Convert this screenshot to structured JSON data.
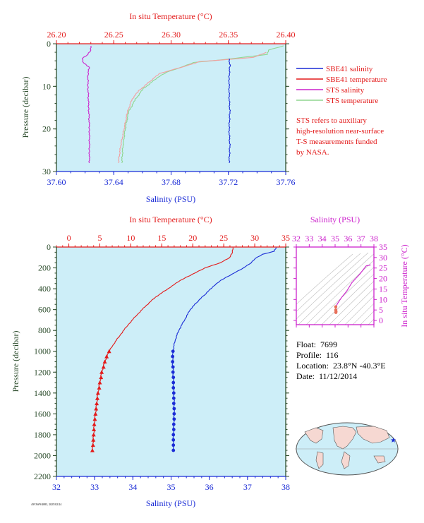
{
  "colors": {
    "salinity": "#1a2bd6",
    "temperature": "#e31a1a",
    "sts_salinity": "#cc22cc",
    "sts_temperature": "#8fd68f",
    "sts_temperature_light": "#f2a0a0",
    "plot_bg": "#cdeef8",
    "pressure_axis": "#2e4e2e",
    "ts_axis": "#cc22cc"
  },
  "chart_data": [
    {
      "id": "near_surface",
      "type": "line",
      "top_axis": {
        "label": "In situ Temperature (°C)",
        "range": [
          26.2,
          26.4
        ],
        "ticks": [
          "26.20",
          "26.25",
          "26.30",
          "26.35",
          "26.40"
        ]
      },
      "bottom_axis": {
        "label": "Salinity (PSU)",
        "range": [
          37.6,
          37.76
        ],
        "ticks": [
          "37.60",
          "37.64",
          "37.68",
          "37.72",
          "37.76"
        ]
      },
      "y_axis": {
        "label": "Pressure (decibar)",
        "range": [
          0,
          30
        ],
        "inverted": true,
        "ticks": [
          "0",
          "10",
          "20",
          "30"
        ]
      },
      "series": [
        {
          "name": "SBE41 salinity",
          "axis": "salinity",
          "points": [
            [
              37.7205,
              3.5
            ],
            [
              37.721,
              5
            ],
            [
              37.7205,
              8
            ],
            [
              37.7205,
              12
            ],
            [
              37.721,
              16
            ],
            [
              37.7205,
              20
            ],
            [
              37.721,
              24
            ],
            [
              37.7205,
              28
            ]
          ]
        },
        {
          "name": "SBE41 temperature",
          "axis": "temperature",
          "points": [
            [
              26.383,
              2.0
            ],
            [
              26.372,
              3.2
            ],
            [
              26.345,
              3.8
            ],
            [
              26.325,
              4.2
            ],
            [
              26.312,
              5.3
            ],
            [
              26.3,
              6.2
            ],
            [
              26.29,
              7.0
            ],
            [
              26.283,
              8.5
            ],
            [
              26.272,
              11
            ],
            [
              26.266,
              13
            ],
            [
              26.262,
              16
            ],
            [
              26.259,
              20
            ],
            [
              26.256,
              24
            ],
            [
              26.254,
              28
            ]
          ]
        },
        {
          "name": "STS salinity",
          "axis": "salinity",
          "points": [
            [
              37.624,
              0.5
            ],
            [
              37.624,
              1.5
            ],
            [
              37.622,
              2.5
            ],
            [
              37.618,
              3.5
            ],
            [
              37.619,
              4.5
            ],
            [
              37.623,
              5.5
            ],
            [
              37.622,
              7
            ],
            [
              37.622,
              10
            ],
            [
              37.6225,
              15
            ],
            [
              37.623,
              20
            ],
            [
              37.623,
              25
            ],
            [
              37.623,
              28
            ]
          ]
        },
        {
          "name": "STS temperature",
          "axis": "temperature",
          "points": [
            [
              26.398,
              0.5
            ],
            [
              26.385,
              1.5
            ],
            [
              26.384,
              2.5
            ],
            [
              26.347,
              3.7
            ],
            [
              26.32,
              4.4
            ],
            [
              26.308,
              5.6
            ],
            [
              26.296,
              6.7
            ],
            [
              26.288,
              8
            ],
            [
              26.276,
              10.5
            ],
            [
              26.269,
              13
            ],
            [
              26.263,
              16
            ],
            [
              26.26,
              20
            ],
            [
              26.258,
              24
            ],
            [
              26.257,
              28
            ]
          ]
        }
      ],
      "legend": [
        "SBE41 salinity",
        "SBE41 temperature",
        "STS salinity",
        "STS temperature"
      ],
      "note": [
        "STS refers to auxiliary",
        "high-resolution near-surface",
        "T-S measurements funded",
        "by NASA."
      ]
    },
    {
      "id": "full_profile",
      "type": "line",
      "top_axis": {
        "label": "In situ Temperature (°C)",
        "range": [
          -2,
          35
        ],
        "ticks": [
          "0",
          "5",
          "10",
          "15",
          "20",
          "25",
          "30",
          "35"
        ]
      },
      "bottom_axis": {
        "label": "Salinity (PSU)",
        "range": [
          32,
          38
        ],
        "ticks": [
          "32",
          "33",
          "34",
          "35",
          "36",
          "37",
          "38"
        ]
      },
      "y_axis": {
        "label": "Pressure (decibar)",
        "range": [
          0,
          2200
        ],
        "inverted": true,
        "ticks": [
          "0",
          "200",
          "400",
          "600",
          "800",
          "1000",
          "1200",
          "1400",
          "1600",
          "1800",
          "2000",
          "2200"
        ]
      },
      "series": [
        {
          "name": "Salinity",
          "axis": "salinity",
          "points": [
            [
              37.75,
              5
            ],
            [
              37.7,
              40
            ],
            [
              37.4,
              70
            ],
            [
              37.2,
              110
            ],
            [
              37.1,
              150
            ],
            [
              36.9,
              200
            ],
            [
              36.6,
              260
            ],
            [
              36.3,
              320
            ],
            [
              36.1,
              380
            ],
            [
              35.9,
              450
            ],
            [
              35.7,
              520
            ],
            [
              35.5,
              600
            ],
            [
              35.35,
              700
            ],
            [
              35.2,
              800
            ],
            [
              35.1,
              900
            ],
            [
              35.05,
              1000
            ],
            [
              35.04,
              1100
            ],
            [
              35.05,
              1200
            ],
            [
              35.06,
              1300
            ],
            [
              35.07,
              1400
            ],
            [
              35.08,
              1500
            ],
            [
              35.08,
              1600
            ],
            [
              35.07,
              1700
            ],
            [
              35.06,
              1800
            ],
            [
              35.06,
              1950
            ]
          ],
          "marker_points": [
            [
              35.05,
              1000
            ],
            [
              35.04,
              1050
            ],
            [
              35.04,
              1100
            ],
            [
              35.05,
              1150
            ],
            [
              35.05,
              1200
            ],
            [
              35.06,
              1250
            ],
            [
              35.06,
              1300
            ],
            [
              35.06,
              1350
            ],
            [
              35.07,
              1400
            ],
            [
              35.07,
              1450
            ],
            [
              35.07,
              1500
            ],
            [
              35.08,
              1550
            ],
            [
              35.08,
              1600
            ],
            [
              35.08,
              1650
            ],
            [
              35.07,
              1700
            ],
            [
              35.07,
              1750
            ],
            [
              35.06,
              1800
            ],
            [
              35.06,
              1850
            ],
            [
              35.06,
              1900
            ],
            [
              35.06,
              1950
            ]
          ]
        },
        {
          "name": "Temperature",
          "axis": "temperature",
          "points": [
            [
              26.5,
              5
            ],
            [
              26.4,
              50
            ],
            [
              26.0,
              100
            ],
            [
              24.5,
              150
            ],
            [
              22.0,
              200
            ],
            [
              20.0,
              260
            ],
            [
              18.0,
              320
            ],
            [
              16.0,
              400
            ],
            [
              14.0,
              480
            ],
            [
              12.5,
              560
            ],
            [
              11.0,
              650
            ],
            [
              9.5,
              750
            ],
            [
              8.2,
              850
            ],
            [
              7.0,
              950
            ],
            [
              6.5,
              1000
            ],
            [
              5.8,
              1100
            ],
            [
              5.3,
              1200
            ],
            [
              5.0,
              1300
            ],
            [
              4.7,
              1400
            ],
            [
              4.5,
              1500
            ],
            [
              4.3,
              1600
            ],
            [
              4.1,
              1700
            ],
            [
              4.0,
              1800
            ],
            [
              3.8,
              1950
            ]
          ],
          "marker_points": [
            [
              6.5,
              1000
            ],
            [
              6.1,
              1050
            ],
            [
              5.8,
              1100
            ],
            [
              5.6,
              1150
            ],
            [
              5.3,
              1200
            ],
            [
              5.2,
              1250
            ],
            [
              5.0,
              1300
            ],
            [
              4.9,
              1350
            ],
            [
              4.7,
              1400
            ],
            [
              4.6,
              1450
            ],
            [
              4.5,
              1500
            ],
            [
              4.4,
              1550
            ],
            [
              4.3,
              1600
            ],
            [
              4.2,
              1650
            ],
            [
              4.1,
              1700
            ],
            [
              4.05,
              1750
            ],
            [
              4.0,
              1800
            ],
            [
              3.95,
              1850
            ],
            [
              3.9,
              1900
            ],
            [
              3.8,
              1950
            ]
          ]
        }
      ]
    },
    {
      "id": "ts_diagram",
      "type": "line",
      "top_axis": {
        "label": "Salinity (PSU)",
        "range": [
          32,
          38
        ],
        "ticks": [
          "32",
          "33",
          "34",
          "35",
          "36",
          "37",
          "38"
        ]
      },
      "right_axis": {
        "label": "In situ Temperature (°C)",
        "range": [
          -2,
          35
        ],
        "ticks": [
          "0",
          "5",
          "10",
          "15",
          "20",
          "25",
          "30",
          "35"
        ]
      },
      "series": [
        {
          "name": "T-S",
          "points": [
            [
              37.75,
              26.5
            ],
            [
              37.4,
              26.0
            ],
            [
              36.9,
              22.0
            ],
            [
              36.3,
              18.0
            ],
            [
              35.9,
              14.0
            ],
            [
              35.5,
              11.0
            ],
            [
              35.2,
              8.2
            ],
            [
              35.05,
              6.5
            ],
            [
              35.05,
              5.0
            ],
            [
              35.07,
              4.3
            ],
            [
              35.06,
              3.8
            ]
          ]
        }
      ]
    }
  ],
  "float_info": {
    "float_label": "Float:",
    "float_value": "7699",
    "profile_label": "Profile:",
    "profile_value": "116",
    "location_label": "Location:",
    "location_value": "23.8°N  -40.3°E",
    "date_label": "Date:",
    "date_value": "11/12/2014"
  },
  "map": {
    "marker": "float-location-star"
  },
  "footer": "AVOW9/4083, 2025/02/24"
}
